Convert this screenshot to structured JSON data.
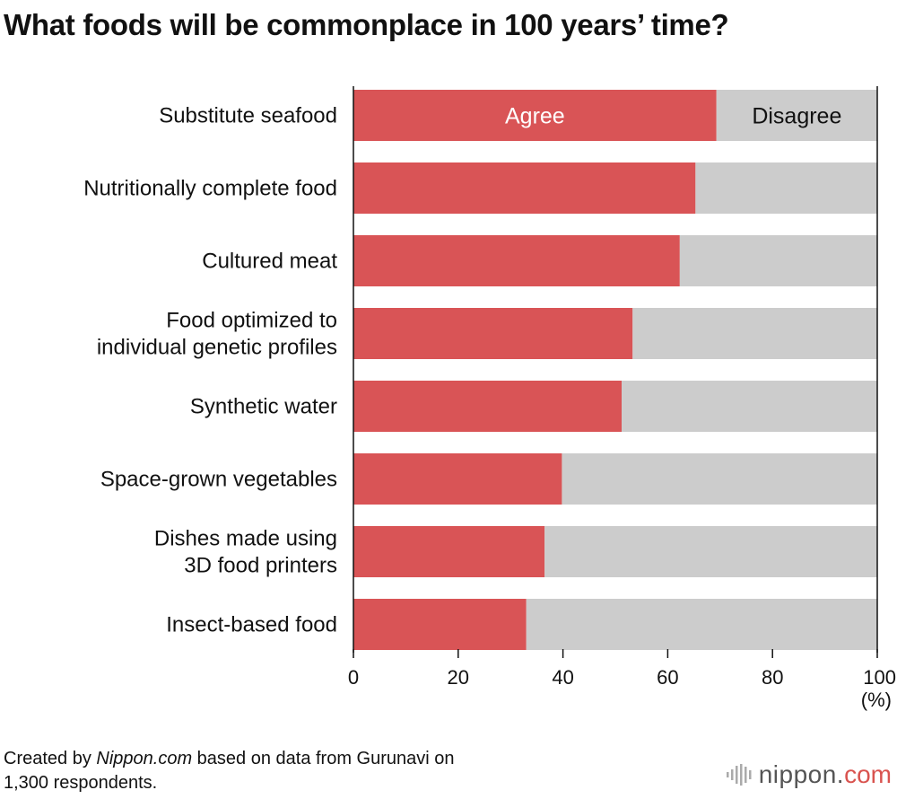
{
  "title": "What foods will be commonplace in 100 years’ time?",
  "unit_label": "(%)",
  "source": {
    "prefix": "Created by ",
    "site": "Nippon.com",
    "suffix_line1": " based on data from Gurunavi on",
    "line2": "1,300 respondents."
  },
  "logo": {
    "text": "nippon.",
    "accent": "com"
  },
  "colors": {
    "agree": "#d95456",
    "disagree": "#cccccc",
    "axis": "#111111"
  },
  "chart_data": {
    "type": "bar",
    "orientation": "horizontal",
    "stacked": true,
    "categories": [
      [
        "Substitute seafood"
      ],
      [
        "Nutritionally complete food"
      ],
      [
        "Cultured meat"
      ],
      [
        "Food optimized to",
        "individual genetic profiles"
      ],
      [
        "Synthetic water"
      ],
      [
        "Space-grown vegetables"
      ],
      [
        "Dishes made using",
        "3D food printers"
      ],
      [
        "Insect-based food"
      ]
    ],
    "series": [
      {
        "name": "Agree",
        "values": [
          69.3,
          65.3,
          62.3,
          53.3,
          51.2,
          39.8,
          36.5,
          33.0
        ]
      },
      {
        "name": "Disagree",
        "values": [
          30.7,
          34.7,
          37.7,
          46.7,
          48.8,
          60.2,
          63.5,
          67.0
        ]
      }
    ],
    "xlim": [
      0,
      100
    ],
    "xticks": [
      "0",
      "20",
      "40",
      "60",
      "80",
      "100"
    ],
    "series_labels_on_first_bar": true,
    "grid": false
  }
}
